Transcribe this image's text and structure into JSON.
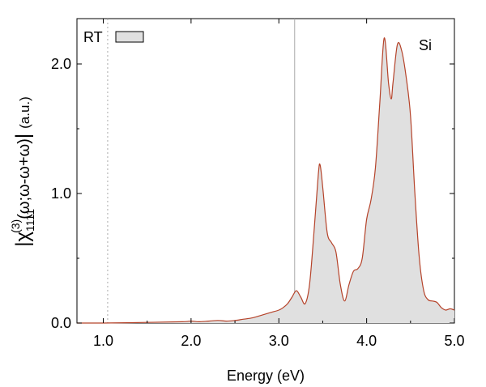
{
  "chart_data": {
    "type": "area",
    "xlabel": "Energy (eV)",
    "ylabel_parts": {
      "chi": "χ",
      "sub": "1111",
      "sup": "(3)",
      "args": "(ω;ω-ω+ω)",
      "units": "(a.u.)"
    },
    "xlim": [
      0.7,
      5.0
    ],
    "ylim": [
      0,
      2.35
    ],
    "xticks": [
      1.0,
      2.0,
      3.0,
      4.0,
      5.0
    ],
    "xtick_labels": [
      "1.0",
      "2.0",
      "3.0",
      "4.0",
      "5.0"
    ],
    "yticks": [
      0.0,
      1.0,
      2.0
    ],
    "ytick_labels": [
      "0.0",
      "1.0",
      "2.0"
    ],
    "vlines": [
      {
        "x": 1.05,
        "style": "dotted"
      },
      {
        "x": 3.18,
        "style": "solid"
      }
    ],
    "annotation": "Si",
    "legend": {
      "label": "RT",
      "placement": "top-left"
    },
    "fill_color": "#e0e0e0",
    "line_color": "#b5432a",
    "series": [
      {
        "name": "RT",
        "x": [
          0.7,
          1.0,
          1.5,
          1.9,
          2.0,
          2.1,
          2.3,
          2.4,
          2.5,
          2.6,
          2.7,
          2.8,
          2.9,
          3.0,
          3.05,
          3.1,
          3.15,
          3.2,
          3.25,
          3.3,
          3.35,
          3.4,
          3.45,
          3.47,
          3.5,
          3.55,
          3.6,
          3.65,
          3.7,
          3.75,
          3.8,
          3.85,
          3.9,
          3.95,
          4.0,
          4.05,
          4.1,
          4.15,
          4.2,
          4.25,
          4.28,
          4.3,
          4.35,
          4.4,
          4.45,
          4.5,
          4.55,
          4.6,
          4.65,
          4.7,
          4.75,
          4.8,
          4.85,
          4.9,
          4.95,
          5.0
        ],
        "y": [
          0.0,
          0.0,
          0.005,
          0.01,
          0.015,
          0.01,
          0.02,
          0.015,
          0.02,
          0.03,
          0.04,
          0.06,
          0.08,
          0.1,
          0.12,
          0.15,
          0.2,
          0.25,
          0.2,
          0.15,
          0.3,
          0.7,
          1.15,
          1.22,
          1.05,
          0.7,
          0.62,
          0.55,
          0.3,
          0.17,
          0.3,
          0.4,
          0.42,
          0.5,
          0.8,
          0.95,
          1.2,
          1.7,
          2.2,
          1.85,
          1.73,
          1.85,
          2.15,
          2.1,
          1.9,
          1.6,
          1.0,
          0.5,
          0.25,
          0.18,
          0.17,
          0.16,
          0.12,
          0.1,
          0.11,
          0.1
        ]
      }
    ]
  }
}
